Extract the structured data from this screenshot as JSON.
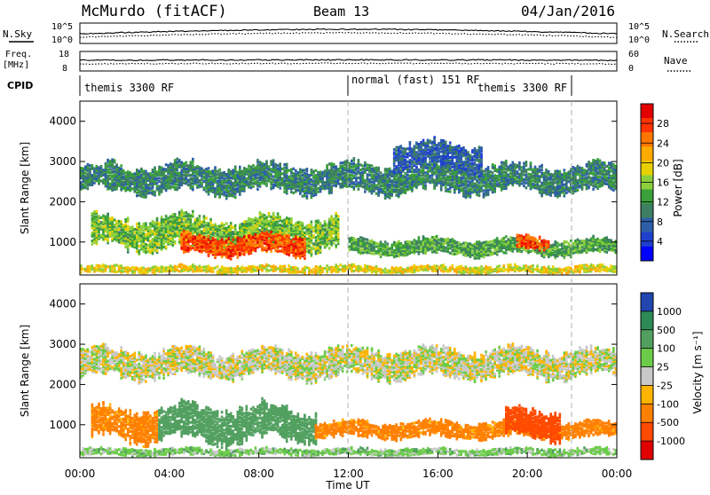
{
  "header": {
    "station": "McMurdo (fitACF)",
    "beam": "Beam 13",
    "date": "04/Jan/2016"
  },
  "summary_panels": {
    "nsky_label": "N.Sky",
    "freq_label_1": "Freq.",
    "freq_label_2": "[MHz]",
    "cpid_label": "CPID",
    "nsearch_label": "N.Search",
    "nave_label": "Nave",
    "left_top_ticks": [
      "10^5",
      "10^0"
    ],
    "right_top_ticks": [
      "10^5",
      "10^0"
    ],
    "freq_ticks": [
      "18",
      "8"
    ],
    "nave_ticks": [
      "60",
      "0"
    ],
    "cpid_segments": [
      {
        "label": "themis 3300 RF",
        "start_hour": 0,
        "end_hour": 12
      },
      {
        "label": "normal (fast) 151 RF",
        "start_hour": 12,
        "end_hour": 22
      },
      {
        "label": "themis 3300 RF",
        "start_hour": 16.5,
        "end_hour": 22
      }
    ]
  },
  "axes": {
    "x_ticks": [
      "00:00",
      "04:00",
      "08:00",
      "12:00",
      "16:00",
      "20:00",
      "00:00"
    ],
    "x_label": "Time UT",
    "y_label": "Slant Range [km]",
    "y_ticks": [
      "4000",
      "3000",
      "2000",
      "1000"
    ]
  },
  "colorbars": {
    "power": {
      "label": "Power [dB]",
      "ticks": [
        "28",
        "24",
        "20",
        "16",
        "12",
        "8",
        "4"
      ],
      "colors": [
        "#e40000",
        "#ff3300",
        "#ff7700",
        "#ffaa00",
        "#e8d000",
        "#8ccf3c",
        "#3aa03a",
        "#3d7f62",
        "#2d5fa8",
        "#1f3fcf",
        "#0000ff"
      ]
    },
    "velocity": {
      "label": "Velocity [m s⁻¹]",
      "ticks": [
        "1000",
        "500",
        "100",
        "25",
        "-25",
        "-100",
        "-500",
        "-1000"
      ],
      "colors": [
        "#2146b0",
        "#2d8a54",
        "#52a060",
        "#6ccc4a",
        "#c8c8c8",
        "#ffb400",
        "#ff8000",
        "#ff4a00",
        "#e00000"
      ]
    }
  },
  "chart_data": [
    {
      "type": "heatmap",
      "title": "Power [dB]",
      "xlabel": "Time UT",
      "ylabel": "Slant Range [km]",
      "xlim_hours": [
        0,
        24
      ],
      "ylim_km": [
        180,
        4500
      ],
      "zlim": [
        0,
        30
      ],
      "bands": [
        {
          "t_start": 0.0,
          "t_end": 24.0,
          "r_center": 2550,
          "r_half_width": 350,
          "value": 9
        },
        {
          "t_start": 0.5,
          "t_end": 11.5,
          "r_center": 1200,
          "r_half_width": 400,
          "value": 14
        },
        {
          "t_start": 4.5,
          "t_end": 10.0,
          "r_center": 900,
          "r_half_width": 250,
          "value": 26
        },
        {
          "t_start": 12.0,
          "t_end": 24.0,
          "r_center": 850,
          "r_half_width": 200,
          "value": 12
        },
        {
          "t_start": 19.5,
          "t_end": 21.0,
          "r_center": 950,
          "r_half_width": 150,
          "value": 26
        },
        {
          "t_start": 0.0,
          "t_end": 24.0,
          "r_center": 300,
          "r_half_width": 80,
          "value": 18
        },
        {
          "t_start": 14.0,
          "t_end": 18.0,
          "r_center": 3100,
          "r_half_width": 350,
          "value": 6
        }
      ]
    },
    {
      "type": "heatmap",
      "title": "Velocity [m s⁻¹]",
      "xlabel": "Time UT",
      "ylabel": "Slant Range [km]",
      "xlim_hours": [
        0,
        24
      ],
      "ylim_km": [
        180,
        4500
      ],
      "zlim": [
        -1000,
        1000
      ],
      "bands": [
        {
          "t_start": 0.0,
          "t_end": 24.0,
          "r_center": 2500,
          "r_half_width": 350,
          "value": 0
        },
        {
          "t_start": 0.5,
          "t_end": 3.5,
          "r_center": 1000,
          "r_half_width": 400,
          "value": -150
        },
        {
          "t_start": 3.5,
          "t_end": 10.5,
          "r_center": 1000,
          "r_half_width": 450,
          "value": 300
        },
        {
          "t_start": 10.5,
          "t_end": 24.0,
          "r_center": 850,
          "r_half_width": 200,
          "value": -150
        },
        {
          "t_start": 19.0,
          "t_end": 21.5,
          "r_center": 1000,
          "r_half_width": 350,
          "value": -600
        },
        {
          "t_start": 0.0,
          "t_end": 24.0,
          "r_center": 300,
          "r_half_width": 80,
          "value": 60
        }
      ]
    }
  ]
}
